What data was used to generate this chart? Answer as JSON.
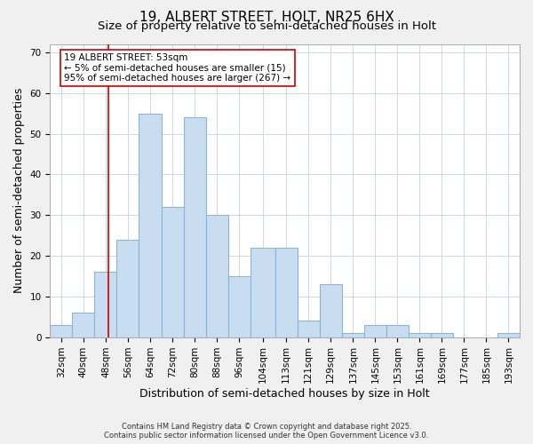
{
  "title": "19, ALBERT STREET, HOLT, NR25 6HX",
  "subtitle": "Size of property relative to semi-detached houses in Holt",
  "xlabel": "Distribution of semi-detached houses by size in Holt",
  "ylabel": "Number of semi-detached properties",
  "bin_edges": [
    32,
    40,
    48,
    56,
    64,
    72,
    80,
    88,
    96,
    104,
    113,
    121,
    129,
    137,
    145,
    153,
    161,
    169,
    177,
    185,
    193
  ],
  "bar_heights": [
    3,
    6,
    16,
    24,
    55,
    32,
    54,
    30,
    15,
    22,
    22,
    4,
    13,
    1,
    3,
    3,
    1,
    1,
    0,
    0,
    1
  ],
  "bar_color": "#c9ddf0",
  "bar_edge_color": "#8ab4d8",
  "vline_x": 53,
  "vline_color": "#cc0000",
  "annotation_line1": "19 ALBERT STREET: 53sqm",
  "annotation_line2": "← 5% of semi-detached houses are smaller (15)",
  "annotation_line3": "95% of semi-detached houses are larger (267) →",
  "annotation_box_color": "#ffffff",
  "annotation_box_edge_color": "#cc0000",
  "ylim": [
    0,
    72
  ],
  "yticks": [
    0,
    10,
    20,
    30,
    40,
    50,
    60,
    70
  ],
  "tick_labels": [
    "32sqm",
    "40sqm",
    "48sqm",
    "56sqm",
    "64sqm",
    "72sqm",
    "80sqm",
    "88sqm",
    "96sqm",
    "104sqm",
    "113sqm",
    "121sqm",
    "129sqm",
    "137sqm",
    "145sqm",
    "153sqm",
    "161sqm",
    "169sqm",
    "177sqm",
    "185sqm",
    "193sqm"
  ],
  "footer_text": "Contains HM Land Registry data © Crown copyright and database right 2025.\nContains public sector information licensed under the Open Government Licence v3.0.",
  "bg_color": "#f0f0f0",
  "plot_bg_color": "#ffffff",
  "grid_color": "#c8d8e8",
  "title_fontsize": 11,
  "subtitle_fontsize": 9.5,
  "axis_label_fontsize": 9,
  "tick_fontsize": 7.5,
  "annotation_fontsize": 7.5,
  "footer_fontsize": 6.0
}
